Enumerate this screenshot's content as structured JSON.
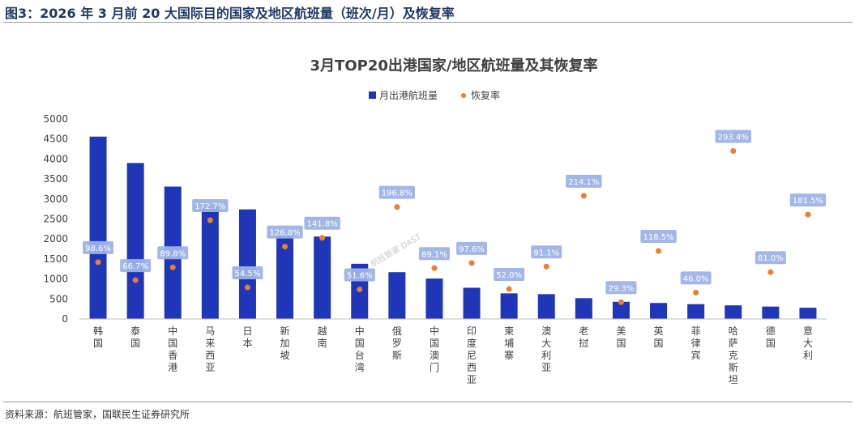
{
  "figure_title": "图3：2026 年 3 月前 20 大国际目的国家及地区航班量（班次/月）及恢复率",
  "source_note": "资料来源：航班管家，国联民生证券研究所",
  "watermark": "航班管家 DAST",
  "colors": {
    "bar": "#1f36b8",
    "dot": "#ed7d31",
    "label_box": "#9db3e6",
    "axis": "#bfbfbf"
  },
  "chart_data": {
    "type": "bar",
    "title": "3月TOP20出港国家/地区航班量及其恢复率",
    "legend": [
      "月出港航班量",
      "恢复率"
    ],
    "legend_position": "top-center",
    "grid": false,
    "ylim": [
      0,
      5000
    ],
    "yticks": [
      0,
      500,
      1000,
      1500,
      2000,
      2500,
      3000,
      3500,
      4000,
      4500,
      5000
    ],
    "categories": [
      "韩国",
      "泰国",
      "中国香港",
      "马来西亚",
      "日本",
      "新加坡",
      "越南",
      "中国台湾",
      "俄罗斯",
      "中国澳门",
      "印度尼西亚",
      "柬埔寨",
      "澳大利亚",
      "老挝",
      "美国",
      "英国",
      "菲律宾",
      "哈萨克斯坦",
      "德国",
      "意大利"
    ],
    "series": [
      {
        "name": "月出港航班量",
        "type": "bar",
        "values": [
          4560,
          3900,
          3310,
          2800,
          2740,
          2080,
          2060,
          1380,
          1170,
          1010,
          780,
          640,
          620,
          520,
          430,
          400,
          370,
          340,
          310,
          280
        ]
      },
      {
        "name": "恢复率",
        "type": "scatter",
        "values": [
          98.6,
          66.7,
          89.8,
          172.7,
          54.5,
          126.8,
          141.8,
          51.6,
          196.8,
          89.1,
          97.6,
          52.0,
          91.1,
          214.1,
          29.3,
          118.5,
          46.0,
          293.4,
          81.0,
          181.5
        ],
        "labels": [
          "98.6%",
          "66.7%",
          "89.8%",
          "172.7%",
          "54.5%",
          "126.8%",
          "141.8%",
          "51.6%",
          "196.8%",
          "89.1%",
          "97.6%",
          "52.0%",
          "91.1%",
          "214.1%",
          "29.3%",
          "118.5%",
          "46.0%",
          "293.4%",
          "81.0%",
          "181.5%"
        ],
        "dot_positions": [
          1420,
          970,
          1290,
          2470,
          790,
          1810,
          2030,
          740,
          2800,
          1270,
          1400,
          750,
          1310,
          3080,
          420,
          1700,
          660,
          4200,
          1170,
          2610
        ]
      }
    ]
  }
}
